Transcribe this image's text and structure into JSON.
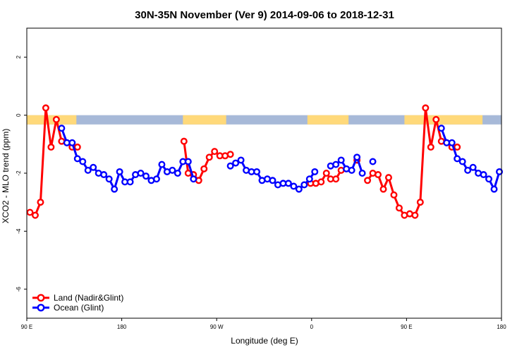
{
  "chart_data": {
    "type": "line",
    "title": "30N-35N November (Ver 9)   2014-09-06 to 2018-12-31",
    "xlabel": "Longitude (deg E)",
    "ylabel": "XCO2 - MLO trend (ppm)",
    "xlim": [
      90,
      540
    ],
    "ylim": [
      -7,
      3
    ],
    "x_ticks": [
      {
        "value": 90,
        "label": "90 E"
      },
      {
        "value": 180,
        "label": "180"
      },
      {
        "value": 270,
        "label": "90 W"
      },
      {
        "value": 360,
        "label": "0"
      },
      {
        "value": 450,
        "label": "90 E"
      },
      {
        "value": 540,
        "label": "180"
      }
    ],
    "y_ticks": [
      {
        "value": 2,
        "label": "2"
      },
      {
        "value": 0,
        "label": "0"
      },
      {
        "value": -2,
        "label": "-2"
      },
      {
        "value": -4,
        "label": "-4"
      },
      {
        "value": -6,
        "label": "-6"
      }
    ],
    "legend_position": "bottom-left",
    "colors": {
      "land": "#ff0000",
      "ocean": "#0000ff",
      "land_mask": "#ffd97a",
      "ocean_mask": "#a7b9d8"
    },
    "land_ocean_band": {
      "y_range": [
        -0.32,
        0
      ],
      "land_segments": [
        [
          90,
          137
        ],
        [
          238,
          279
        ],
        [
          356,
          395
        ],
        [
          448,
          522
        ]
      ]
    },
    "series": [
      {
        "name": "Land (Nadir&Glint)",
        "color": "#ff0000",
        "segments": [
          [
            [
              93,
              -3.35
            ],
            [
              98,
              -3.45
            ],
            [
              103,
              -3.0
            ],
            [
              108,
              0.25
            ],
            [
              113,
              -1.1
            ],
            [
              118,
              -0.15
            ],
            [
              123,
              -0.9
            ]
          ],
          [
            [
              128,
              -0.95
            ],
            [
              133,
              -1.1
            ],
            [
              138,
              -1.1
            ]
          ],
          [
            [
              239,
              -0.9
            ],
            [
              243,
              -2.0
            ],
            [
              248,
              -2.05
            ],
            [
              253,
              -2.25
            ],
            [
              258,
              -1.85
            ],
            [
              263,
              -1.45
            ],
            [
              268,
              -1.25
            ],
            [
              273,
              -1.4
            ],
            [
              278,
              -1.4
            ],
            [
              283,
              -1.35
            ]
          ],
          [
            [
              359,
              -2.35
            ],
            [
              364,
              -2.35
            ],
            [
              369,
              -2.3
            ],
            [
              374,
              -2.0
            ],
            [
              378,
              -2.2
            ],
            [
              383,
              -2.2
            ],
            [
              388,
              -1.9
            ]
          ],
          [
            [
              403,
              -1.55
            ]
          ],
          [
            [
              413,
              -2.25
            ],
            [
              418,
              -2.0
            ],
            [
              423,
              -2.05
            ],
            [
              428,
              -2.55
            ],
            [
              433,
              -2.15
            ],
            [
              438,
              -2.75
            ],
            [
              443,
              -3.2
            ],
            [
              448,
              -3.45
            ],
            [
              453,
              -3.4
            ],
            [
              458,
              -3.45
            ],
            [
              463,
              -3.0
            ],
            [
              468,
              0.25
            ],
            [
              473,
              -1.1
            ],
            [
              478,
              -0.15
            ],
            [
              483,
              -0.9
            ]
          ],
          [
            [
              488,
              -0.95
            ],
            [
              493,
              -1.1
            ],
            [
              498,
              -1.1
            ]
          ]
        ]
      },
      {
        "name": "Ocean (Glint)",
        "color": "#0000ff",
        "segments": [
          [
            [
              123,
              -0.45
            ],
            [
              128,
              -0.95
            ],
            [
              133,
              -0.95
            ],
            [
              138,
              -1.5
            ],
            [
              143,
              -1.6
            ],
            [
              148,
              -1.9
            ],
            [
              153,
              -1.8
            ],
            [
              158,
              -2.0
            ],
            [
              163,
              -2.05
            ],
            [
              168,
              -2.2
            ],
            [
              173,
              -2.55
            ],
            [
              178,
              -1.95
            ],
            [
              183,
              -2.3
            ],
            [
              188,
              -2.3
            ],
            [
              193,
              -2.05
            ],
            [
              198,
              -2.0
            ],
            [
              203,
              -2.1
            ],
            [
              208,
              -2.25
            ],
            [
              213,
              -2.2
            ],
            [
              218,
              -1.7
            ],
            [
              223,
              -1.95
            ],
            [
              228,
              -1.9
            ],
            [
              233,
              -2.0
            ],
            [
              238,
              -1.6
            ],
            [
              243,
              -1.6
            ],
            [
              248,
              -2.2
            ]
          ],
          [
            [
              283,
              -1.75
            ],
            [
              288,
              -1.65
            ],
            [
              293,
              -1.55
            ],
            [
              298,
              -1.9
            ],
            [
              303,
              -1.95
            ],
            [
              308,
              -1.95
            ],
            [
              313,
              -2.25
            ],
            [
              318,
              -2.2
            ],
            [
              323,
              -2.25
            ],
            [
              328,
              -2.4
            ],
            [
              333,
              -2.35
            ],
            [
              338,
              -2.35
            ],
            [
              343,
              -2.45
            ],
            [
              348,
              -2.55
            ],
            [
              353,
              -2.4
            ],
            [
              358,
              -2.2
            ],
            [
              363,
              -1.95
            ]
          ],
          [
            [
              378,
              -1.75
            ],
            [
              383,
              -1.7
            ],
            [
              388,
              -1.55
            ],
            [
              393,
              -1.85
            ],
            [
              398,
              -1.9
            ],
            [
              403,
              -1.45
            ],
            [
              408,
              -2.0
            ]
          ],
          [
            [
              418,
              -1.6
            ]
          ],
          [
            [
              483,
              -0.45
            ],
            [
              488,
              -0.95
            ],
            [
              493,
              -0.95
            ],
            [
              498,
              -1.5
            ],
            [
              503,
              -1.6
            ],
            [
              508,
              -1.9
            ],
            [
              513,
              -1.8
            ],
            [
              518,
              -2.0
            ],
            [
              523,
              -2.05
            ],
            [
              528,
              -2.2
            ],
            [
              533,
              -2.55
            ],
            [
              538,
              -1.95
            ]
          ]
        ]
      }
    ]
  }
}
